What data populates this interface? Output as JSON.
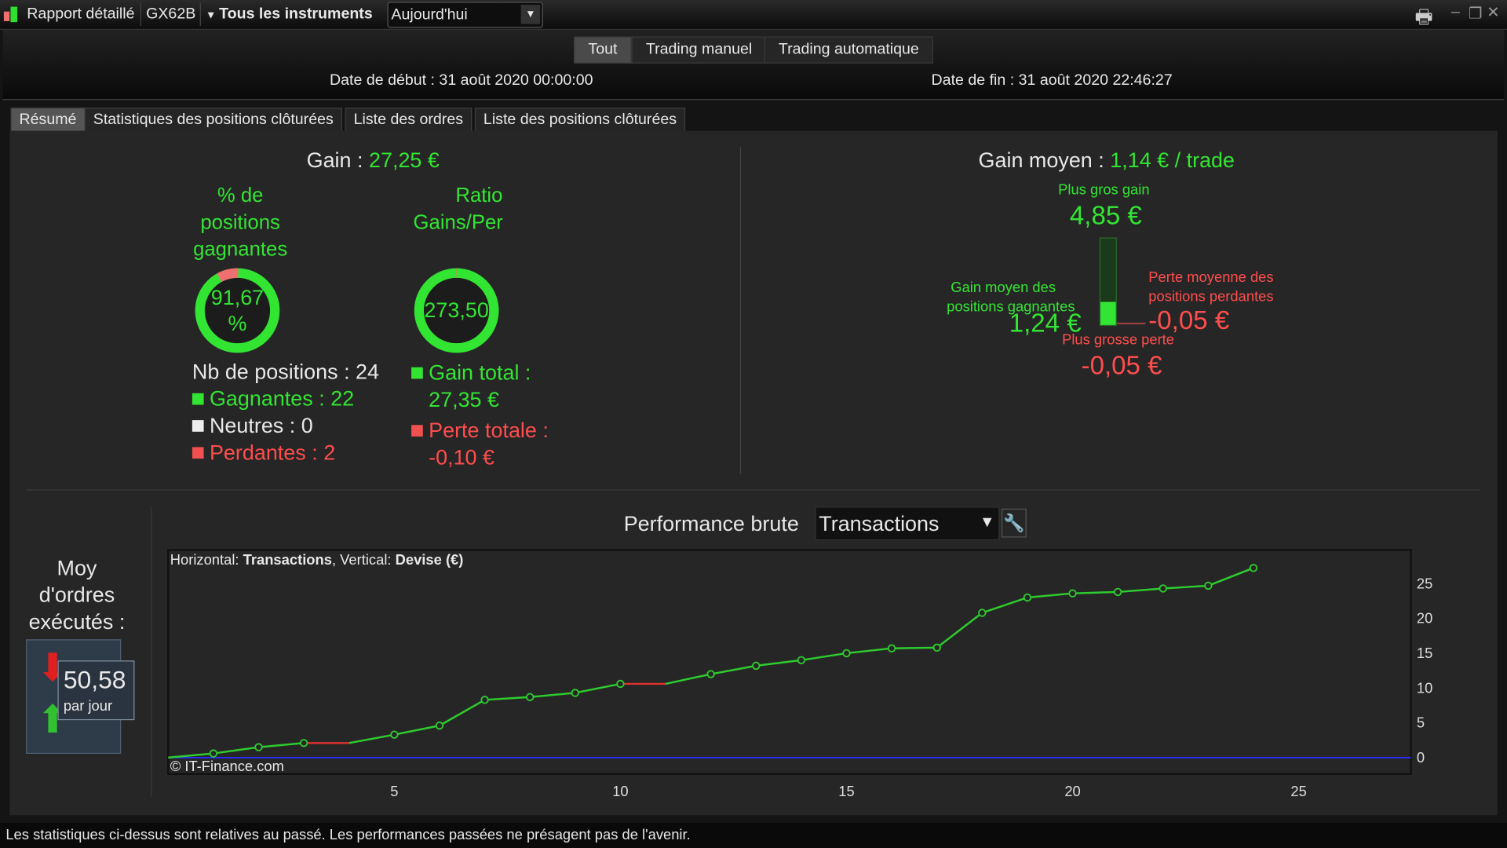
{
  "topbar": {
    "title": "Rapport détaillé",
    "account": "GX62B",
    "instruments": "Tous les instruments",
    "period": "Aujourd'hui"
  },
  "modes": [
    {
      "label": "Tout",
      "active": true
    },
    {
      "label": "Trading manuel"
    },
    {
      "label": "Trading automatique"
    }
  ],
  "dates": {
    "start": "Date de début : 31 août 2020 00:00:00",
    "end": "Date de fin : 31 août 2020 22:46:27"
  },
  "tabs": [
    {
      "label": "Résumé",
      "active": true
    },
    {
      "label": "Statistiques des positions clôturées"
    },
    {
      "label": "Liste des ordres"
    },
    {
      "label": "Liste des positions clôturées"
    }
  ],
  "summary": {
    "gain_label": "Gain :",
    "gain_value": "27,25 €",
    "win_pct_title": [
      "% de",
      "positions",
      "gagnantes"
    ],
    "win_pct_value": [
      "91,67",
      "%"
    ],
    "win_pct": 91.67,
    "ratio_title": [
      "Ratio",
      "Gains/Pertes"
    ],
    "ratio_value": "273,50",
    "ratio_red_fraction": 0.004,
    "nb_positions": "Nb de positions : 24",
    "gagnantes": "Gagnantes : 22",
    "neutres": "Neutres : 0",
    "perdantes": "Perdantes : 2",
    "gain_total_label": "Gain total :",
    "gain_total": "27,35 €",
    "perte_totale_label": "Perte totale :",
    "perte_totale": "-0,10 €"
  },
  "average": {
    "label": "Gain moyen :",
    "value": "1,14 € / trade",
    "biggest_gain_label": "Plus gros gain",
    "biggest_gain": "4,85 €",
    "avg_win_label": [
      "Gain moyen des",
      "positions gagnantes"
    ],
    "avg_win": "1,24 €",
    "avg_loss_label": [
      "Perte moyenne des",
      "positions perdantes"
    ],
    "avg_loss": "-0,05 €",
    "biggest_loss_label": "Plus grosse perte",
    "biggest_loss": "-0,05 €"
  },
  "orders": {
    "label": [
      "Moy",
      "d'ordres",
      "exécutés :"
    ],
    "value": "50,58",
    "unit": "par jour"
  },
  "perf": {
    "title": "Performance brute",
    "selector": "Transactions",
    "caption_h": "Horizontal: ",
    "caption_h_val": "Transactions",
    "caption_v": ", Vertical: ",
    "caption_v_val": "Devise (€)",
    "copyright": "© IT-Finance.com"
  },
  "chart_data": {
    "type": "line",
    "title": "Performance brute",
    "xlabel": "Transactions",
    "ylabel": "Devise (€)",
    "xlim": [
      0,
      27.5
    ],
    "ylim": [
      -2.5,
      29.5
    ],
    "xticks": [
      5,
      10,
      15,
      20,
      25
    ],
    "yticks": [
      0,
      5,
      10,
      15,
      20,
      25
    ],
    "x": [
      0,
      1,
      2,
      3,
      4,
      5,
      6,
      7,
      8,
      9,
      10,
      11,
      12,
      13,
      14,
      15,
      16,
      17,
      18,
      19,
      20,
      21,
      22,
      23,
      24
    ],
    "y": [
      0,
      0.6,
      1.5,
      2.1,
      2.1,
      3.3,
      4.6,
      8.3,
      8.7,
      9.3,
      10.6,
      10.6,
      12.0,
      13.2,
      14.0,
      15.0,
      15.7,
      15.8,
      20.8,
      23.0,
      23.6,
      23.8,
      24.3,
      24.7,
      27.25
    ],
    "loss_segments": [
      [
        3,
        4
      ],
      [
        10,
        11
      ]
    ],
    "line_color": "#2ecc2e",
    "loss_color": "#e03030",
    "zero_line_color": "#2a2aff"
  },
  "status": "Les statistiques ci-dessus sont relatives au passé. Les performances passées ne présagent pas de l'avenir."
}
